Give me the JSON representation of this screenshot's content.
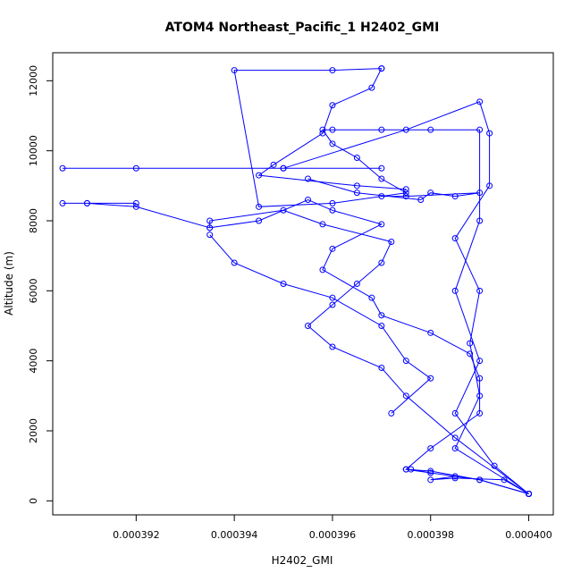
{
  "chart_data": {
    "type": "scatter",
    "title": "ATOM4 Northeast_Pacific_1 H2402_GMI",
    "xlabel": "H2402_GMI",
    "ylabel": "Altitude (m)",
    "xlim": [
      0.0003903,
      0.0004005
    ],
    "ylim": [
      -400,
      12800
    ],
    "x_ticks": [
      0.000392,
      0.000394,
      0.000396,
      0.000398,
      0.0004
    ],
    "x_tick_labels": [
      "0.000392",
      "0.000394",
      "0.000396",
      "0.000398",
      "0.000400"
    ],
    "y_ticks": [
      0,
      2000,
      4000,
      6000,
      8000,
      10000,
      12000
    ],
    "y_tick_labels": [
      "0",
      "2000",
      "4000",
      "6000",
      "8000",
      "10000",
      "12000"
    ],
    "grid": false,
    "marker": "open-circle",
    "color": "#0000ff",
    "series": [
      {
        "x": [
          0.0004,
          0.000399,
          0.000398,
          0.0003975,
          0.000398,
          0.000399,
          0.000399,
          0.0003988,
          0.000398,
          0.000397,
          0.0003968,
          0.0003958,
          0.000396,
          0.000397,
          0.000396,
          0.0003955,
          0.0003945,
          0.0003935,
          0.000392,
          0.000391,
          0.0003905,
          0.000391,
          0.000392
        ],
        "y": [
          200,
          600,
          850,
          900,
          1500,
          2500,
          3500,
          4200,
          4800,
          5300,
          5800,
          6600,
          7200,
          7900,
          8300,
          8600,
          8000,
          7800,
          8400,
          8500,
          8500,
          8500,
          8500
        ]
      },
      {
        "x": [
          0.0004,
          0.0003985,
          0.000399,
          0.0003988,
          0.000399,
          0.0003985,
          0.0003992,
          0.0003992,
          0.000399,
          0.0003975,
          0.000395,
          0.0003905,
          0.000392,
          0.000395,
          0.000397
        ],
        "y": [
          200,
          1500,
          3000,
          4500,
          6000,
          7500,
          9000,
          10500,
          11400,
          10600,
          9500,
          9500,
          9500,
          9500,
          9500
        ]
      },
      {
        "x": [
          0.0004,
          0.0003993,
          0.0003985,
          0.000399,
          0.0003985,
          0.000399,
          0.000399,
          0.000398,
          0.000397,
          0.000396,
          0.0003958,
          0.000396,
          0.0003965,
          0.000397,
          0.0003975,
          0.000396,
          0.0003945,
          0.000394,
          0.000396,
          0.000397
        ],
        "y": [
          200,
          1000,
          2500,
          4000,
          6000,
          8000,
          10600,
          10600,
          10600,
          10600,
          10600,
          10200,
          9800,
          9200,
          8800,
          8500,
          8400,
          12300,
          12300,
          12350
        ]
      },
      {
        "x": [
          0.0004,
          0.0003985,
          0.0003975,
          0.000397,
          0.000396,
          0.0003955,
          0.000396,
          0.0003965,
          0.000397,
          0.0003972,
          0.0003958,
          0.000395,
          0.0003935,
          0.0003935
        ],
        "y": [
          200,
          1800,
          3000,
          3800,
          4400,
          5000,
          5600,
          6200,
          6800,
          7400,
          7900,
          8300,
          8000,
          7800
        ]
      },
      {
        "x": [
          0.0003975,
          0.0003985,
          0.000398,
          0.0003985,
          0.0003995,
          0.0004,
          0.000399,
          0.000398,
          0.0003976
        ],
        "y": [
          900,
          700,
          600,
          650,
          600,
          200,
          600,
          800,
          900
        ]
      },
      {
        "x": [
          0.0003972,
          0.000398,
          0.0003975,
          0.000397,
          0.000396,
          0.000395,
          0.000394,
          0.0003935
        ],
        "y": [
          2500,
          3500,
          4000,
          5000,
          5800,
          6200,
          6800,
          7600
        ]
      },
      {
        "x": [
          0.0003955,
          0.0003965,
          0.0003978,
          0.000398,
          0.0003985,
          0.000399,
          0.0003975,
          0.000397
        ],
        "y": [
          9200,
          8800,
          8600,
          8800,
          8700,
          8800,
          8700,
          8700
        ]
      },
      {
        "x": [
          0.000397,
          0.0003968,
          0.000396,
          0.0003958,
          0.0003948,
          0.0003945,
          0.0003965,
          0.0003975
        ],
        "y": [
          12350,
          11800,
          11300,
          10500,
          9600,
          9300,
          9000,
          8900
        ]
      }
    ]
  }
}
